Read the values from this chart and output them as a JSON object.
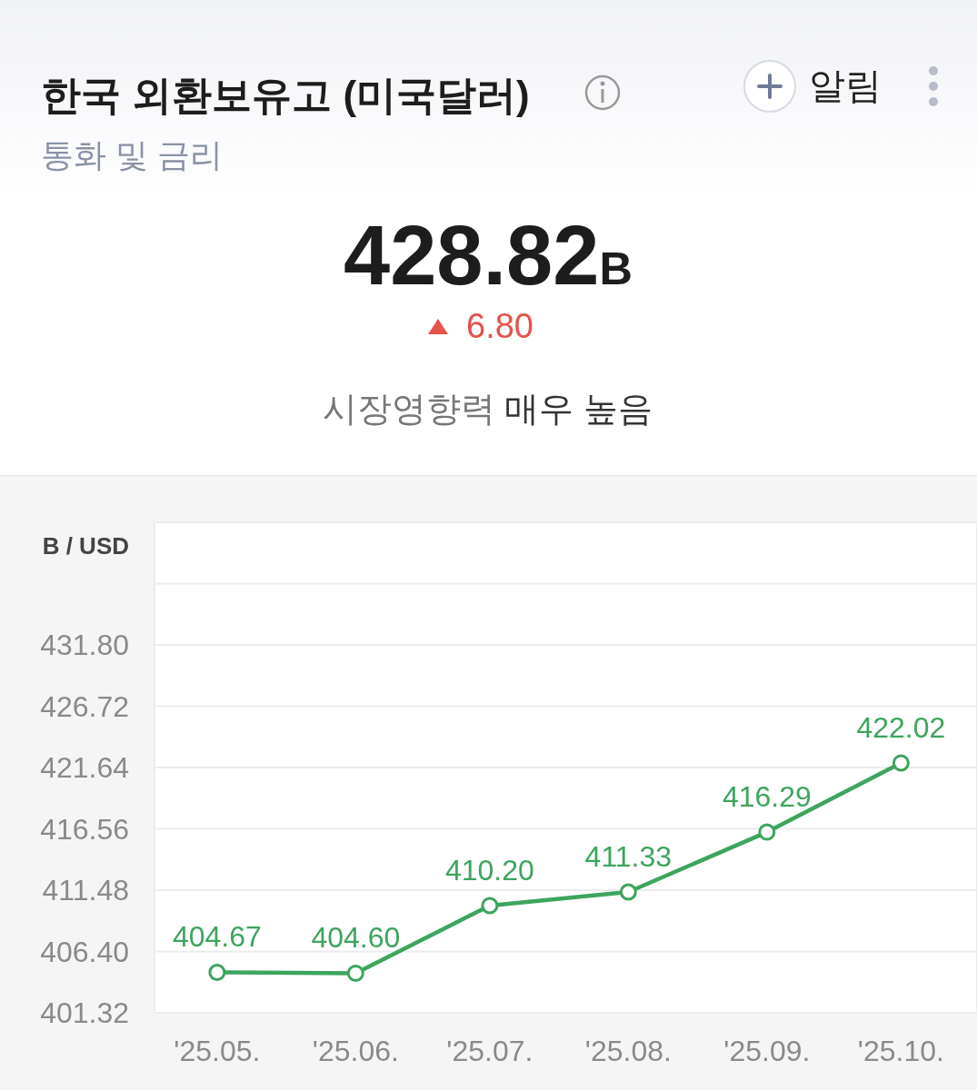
{
  "chart_data": {
    "type": "line",
    "title": "한국 외환보유고 (미국달러)",
    "subtitle": "통화 및 금리",
    "ylabel": "B / USD",
    "annotations": [
      "428.82B",
      "6.80",
      "시장영향력",
      "매우 높음",
      "알림"
    ],
    "x": [
      "2025-05",
      "2025-06",
      "2025-07",
      "2025-08",
      "2025-09",
      "2025-10"
    ],
    "series": [
      {
        "color": "#3da55d",
        "values": [
          404.67,
          404.6,
          410.2,
          411.33,
          416.29,
          422.02
        ],
        "value_labels": [
          "404.67",
          "404.60",
          "410.20",
          "411.33",
          "416.29",
          "422.02"
        ]
      }
    ],
    "xlim": [
      "2025-04-17",
      "2025-10-18"
    ],
    "xticks": [
      {
        "value": "2025-05",
        "label": "'25.05."
      },
      {
        "value": "2025-06",
        "label": "'25.06."
      },
      {
        "value": "2025-07",
        "label": "'25.07."
      },
      {
        "value": "2025-08",
        "label": "'25.08."
      },
      {
        "value": "2025-09",
        "label": "'25.09."
      },
      {
        "value": "2025-10",
        "label": "'25.10."
      }
    ],
    "ylim": [
      401.32,
      441.96
    ],
    "yticks": [
      {
        "value": 401.32,
        "label": "401.32"
      },
      {
        "value": 406.4,
        "label": "406.40"
      },
      {
        "value": 411.48,
        "label": "411.48"
      },
      {
        "value": 416.56,
        "label": "416.56"
      },
      {
        "value": 421.64,
        "label": "421.64"
      },
      {
        "value": 426.72,
        "label": "426.72"
      },
      {
        "value": 431.8,
        "label": "431.80"
      },
      {
        "value": 436.88,
        "label": null
      },
      {
        "value": 441.96,
        "label": null
      }
    ],
    "grid": "y",
    "marker": "circle",
    "line_style": "solid"
  }
}
